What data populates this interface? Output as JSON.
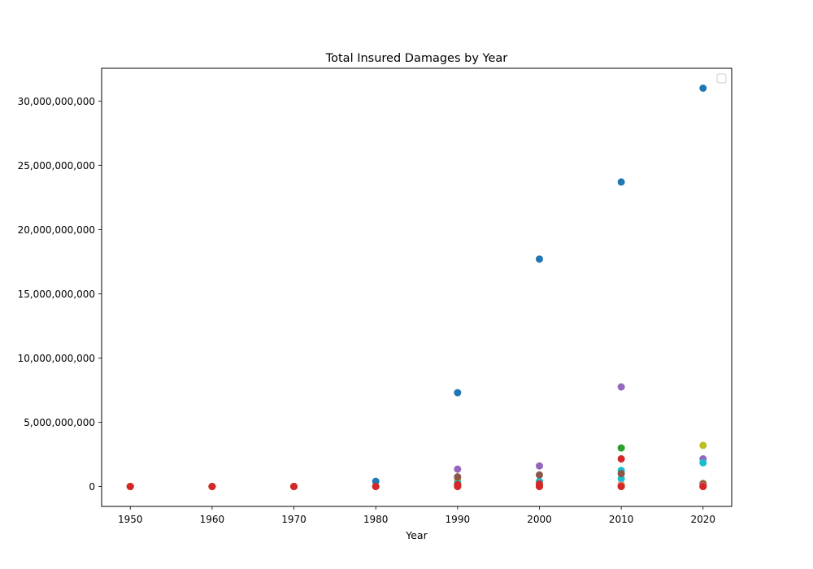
{
  "chart_data": {
    "type": "scatter",
    "title": "Total Insured Damages by Year",
    "xlabel": "Year",
    "ylabel": "",
    "x_ticks": [
      1950,
      1960,
      1970,
      1980,
      1990,
      2000,
      2010,
      2020
    ],
    "y_ticks": [
      0,
      5000000000,
      10000000000,
      15000000000,
      20000000000,
      25000000000,
      30000000000
    ],
    "y_tick_labels": [
      "0",
      "5,000,000,000",
      "10,000,000,000",
      "15,000,000,000",
      "20,000,000,000",
      "25,000,000,000",
      "30,000,000,000"
    ],
    "xlim": [
      1946.5,
      2023.5
    ],
    "ylim": [
      -1550000000,
      32550000000
    ],
    "grid": false,
    "legend": {
      "placement": "top-right",
      "entries": []
    },
    "series": [
      {
        "color": "#1f77b4",
        "points": [
          [
            1950,
            0
          ],
          [
            1960,
            0
          ],
          [
            1970,
            0
          ],
          [
            1980,
            400000000
          ],
          [
            1990,
            7300000000
          ],
          [
            2000,
            17700000000
          ],
          [
            2010,
            23700000000
          ],
          [
            2020,
            31000000000
          ],
          [
            1980,
            0
          ],
          [
            1990,
            0
          ],
          [
            2000,
            0
          ],
          [
            2010,
            0
          ],
          [
            2020,
            0
          ]
        ]
      },
      {
        "color": "#9467bd",
        "points": [
          [
            1950,
            0
          ],
          [
            1960,
            0
          ],
          [
            1970,
            0
          ],
          [
            1990,
            1350000000
          ],
          [
            2000,
            1600000000
          ],
          [
            2010,
            7750000000
          ],
          [
            2020,
            2150000000
          ]
        ]
      },
      {
        "color": "#bcbd22",
        "points": [
          [
            1950,
            0
          ],
          [
            1960,
            0
          ],
          [
            1970,
            0
          ],
          [
            1990,
            500000000
          ],
          [
            2000,
            150000000
          ],
          [
            2010,
            150000000
          ],
          [
            2020,
            3200000000
          ],
          [
            2020,
            250000000
          ]
        ]
      },
      {
        "color": "#2ca02c",
        "points": [
          [
            1950,
            0
          ],
          [
            1960,
            0
          ],
          [
            1970,
            0
          ],
          [
            1990,
            100000000
          ],
          [
            2000,
            100000000
          ],
          [
            2010,
            3000000000
          ],
          [
            2020,
            100000000
          ]
        ]
      },
      {
        "color": "#17becf",
        "points": [
          [
            1950,
            0
          ],
          [
            1960,
            0
          ],
          [
            1970,
            0
          ],
          [
            1990,
            300000000
          ],
          [
            2000,
            400000000
          ],
          [
            2010,
            1250000000
          ],
          [
            2010,
            600000000
          ],
          [
            2020,
            1850000000
          ]
        ]
      },
      {
        "color": "#8c564b",
        "points": [
          [
            1950,
            0
          ],
          [
            1960,
            0
          ],
          [
            1970,
            0
          ],
          [
            1980,
            0
          ],
          [
            1990,
            750000000
          ],
          [
            2000,
            900000000
          ],
          [
            2010,
            1000000000
          ],
          [
            2020,
            200000000
          ]
        ]
      },
      {
        "color": "#e377c2",
        "points": [
          [
            1950,
            0
          ],
          [
            1960,
            0
          ],
          [
            1970,
            0
          ],
          [
            2010,
            100000000
          ],
          [
            2020,
            50000000
          ]
        ]
      },
      {
        "color": "#ff7f0e",
        "points": [
          [
            1950,
            0
          ],
          [
            1960,
            0
          ],
          [
            1970,
            0
          ],
          [
            1990,
            0
          ],
          [
            2000,
            0
          ],
          [
            2010,
            50000000
          ],
          [
            2020,
            0
          ]
        ]
      },
      {
        "color": "#d62728",
        "points": [
          [
            1950,
            0
          ],
          [
            1960,
            0
          ],
          [
            1970,
            0
          ],
          [
            1980,
            0
          ],
          [
            1990,
            150000000
          ],
          [
            2000,
            200000000
          ],
          [
            2010,
            2150000000
          ],
          [
            1990,
            0
          ],
          [
            2000,
            0
          ],
          [
            2010,
            0
          ],
          [
            2020,
            0
          ]
        ]
      }
    ]
  }
}
